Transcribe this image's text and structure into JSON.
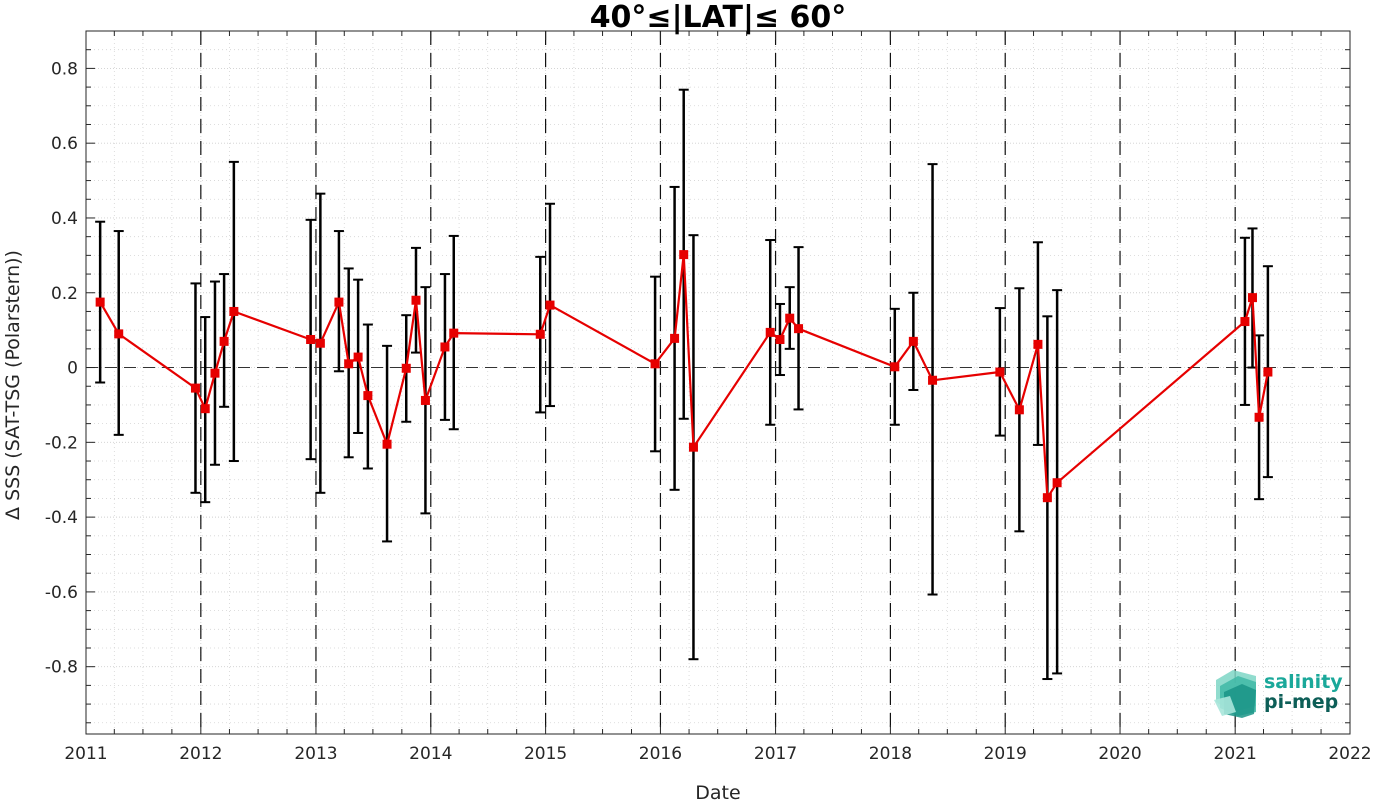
{
  "chart_data": {
    "type": "line",
    "title": "40°≤|LAT|≤ 60°",
    "xlabel": "Date",
    "ylabel": "Δ SSS (SAT-TSG (Polarstern))",
    "xlim": [
      "2011-01-01",
      "2022-01-01"
    ],
    "ylim": [
      -0.98,
      0.9
    ],
    "x_ticks": [
      "2011",
      "2012",
      "2013",
      "2014",
      "2015",
      "2016",
      "2017",
      "2018",
      "2019",
      "2020",
      "2021",
      "2022"
    ],
    "y_ticks": [
      -0.8,
      -0.6,
      -0.4,
      -0.2,
      0,
      0.2,
      0.4,
      0.6,
      0.8
    ],
    "y_tick_labels": [
      "-0.8",
      "-0.6",
      "-0.4",
      "-0.2",
      "0",
      "0.2",
      "0.4",
      "0.6",
      "0.8"
    ],
    "grid": true,
    "minor_grid": true,
    "zero_line": "dashed",
    "year_separators": [
      "2012-01-01",
      "2013-01-01",
      "2014-01-01",
      "2015-01-01",
      "2016-01-01",
      "2017-01-01",
      "2018-01-01",
      "2019-01-01",
      "2020-01-01",
      "2021-01-01"
    ],
    "series": [
      {
        "color": "#e60000",
        "marker": "square",
        "errorbar_color": "#000000",
        "points": [
          {
            "x": "2011-02-15",
            "y": 0.175,
            "lo": -0.04,
            "hi": 0.39
          },
          {
            "x": "2011-04-15",
            "y": 0.09,
            "lo": -0.18,
            "hi": 0.365
          },
          {
            "x": "2011-12-15",
            "y": -0.055,
            "lo": -0.335,
            "hi": 0.225
          },
          {
            "x": "2012-01-15",
            "y": -0.11,
            "lo": -0.36,
            "hi": 0.135
          },
          {
            "x": "2012-02-15",
            "y": -0.015,
            "lo": -0.26,
            "hi": 0.23
          },
          {
            "x": "2012-03-15",
            "y": 0.07,
            "lo": -0.105,
            "hi": 0.25
          },
          {
            "x": "2012-04-15",
            "y": 0.15,
            "lo": -0.25,
            "hi": 0.55
          },
          {
            "x": "2012-12-15",
            "y": 0.075,
            "lo": -0.245,
            "hi": 0.395
          },
          {
            "x": "2013-01-15",
            "y": 0.065,
            "lo": -0.335,
            "hi": 0.465
          },
          {
            "x": "2013-03-15",
            "y": 0.175,
            "lo": -0.01,
            "hi": 0.365
          },
          {
            "x": "2013-04-15",
            "y": 0.01,
            "lo": -0.24,
            "hi": 0.265
          },
          {
            "x": "2013-05-15",
            "y": 0.028,
            "lo": -0.175,
            "hi": 0.235
          },
          {
            "x": "2013-06-15",
            "y": -0.075,
            "lo": -0.27,
            "hi": 0.115
          },
          {
            "x": "2013-08-15",
            "y": -0.205,
            "lo": -0.465,
            "hi": 0.058
          },
          {
            "x": "2013-10-15",
            "y": -0.002,
            "lo": -0.145,
            "hi": 0.14
          },
          {
            "x": "2013-11-15",
            "y": 0.18,
            "lo": 0.04,
            "hi": 0.32
          },
          {
            "x": "2013-12-15",
            "y": -0.088,
            "lo": -0.39,
            "hi": 0.215
          },
          {
            "x": "2014-02-15",
            "y": 0.055,
            "lo": -0.14,
            "hi": 0.25
          },
          {
            "x": "2014-03-15",
            "y": 0.092,
            "lo": -0.165,
            "hi": 0.352
          },
          {
            "x": "2014-12-15",
            "y": 0.089,
            "lo": -0.12,
            "hi": 0.296
          },
          {
            "x": "2015-01-15",
            "y": 0.167,
            "lo": -0.103,
            "hi": 0.438
          },
          {
            "x": "2015-12-15",
            "y": 0.01,
            "lo": -0.224,
            "hi": 0.243
          },
          {
            "x": "2016-02-15",
            "y": 0.078,
            "lo": -0.327,
            "hi": 0.483
          },
          {
            "x": "2016-03-15",
            "y": 0.302,
            "lo": -0.137,
            "hi": 0.743
          },
          {
            "x": "2016-04-15",
            "y": -0.213,
            "lo": -0.78,
            "hi": 0.354
          },
          {
            "x": "2016-12-15",
            "y": 0.094,
            "lo": -0.153,
            "hi": 0.341
          },
          {
            "x": "2017-01-15",
            "y": 0.075,
            "lo": -0.02,
            "hi": 0.17
          },
          {
            "x": "2017-02-15",
            "y": 0.132,
            "lo": 0.05,
            "hi": 0.215
          },
          {
            "x": "2017-03-15",
            "y": 0.104,
            "lo": -0.112,
            "hi": 0.322
          },
          {
            "x": "2018-01-15",
            "y": 0.002,
            "lo": -0.153,
            "hi": 0.157
          },
          {
            "x": "2018-03-15",
            "y": 0.07,
            "lo": -0.06,
            "hi": 0.2
          },
          {
            "x": "2018-05-15",
            "y": -0.034,
            "lo": -0.607,
            "hi": 0.544
          },
          {
            "x": "2018-12-15",
            "y": -0.012,
            "lo": -0.182,
            "hi": 0.159
          },
          {
            "x": "2019-02-15",
            "y": -0.113,
            "lo": -0.438,
            "hi": 0.212
          },
          {
            "x": "2019-04-15",
            "y": 0.062,
            "lo": -0.207,
            "hi": 0.335
          },
          {
            "x": "2019-05-15",
            "y": -0.348,
            "lo": -0.833,
            "hi": 0.137
          },
          {
            "x": "2019-06-15",
            "y": -0.308,
            "lo": -0.818,
            "hi": 0.207
          },
          {
            "x": "2021-02-01",
            "y": 0.123,
            "lo": -0.1,
            "hi": 0.347
          },
          {
            "x": "2021-02-25",
            "y": 0.187,
            "lo": 0.0,
            "hi": 0.372
          },
          {
            "x": "2021-03-18",
            "y": -0.133,
            "lo": -0.352,
            "hi": 0.086
          },
          {
            "x": "2021-04-15",
            "y": -0.012,
            "lo": -0.293,
            "hi": 0.271
          }
        ]
      }
    ]
  },
  "logo": {
    "line1": "salinity",
    "line2": "pi-mep",
    "color_primary": "#1aa89a",
    "color_dark": "#0d5e57"
  }
}
